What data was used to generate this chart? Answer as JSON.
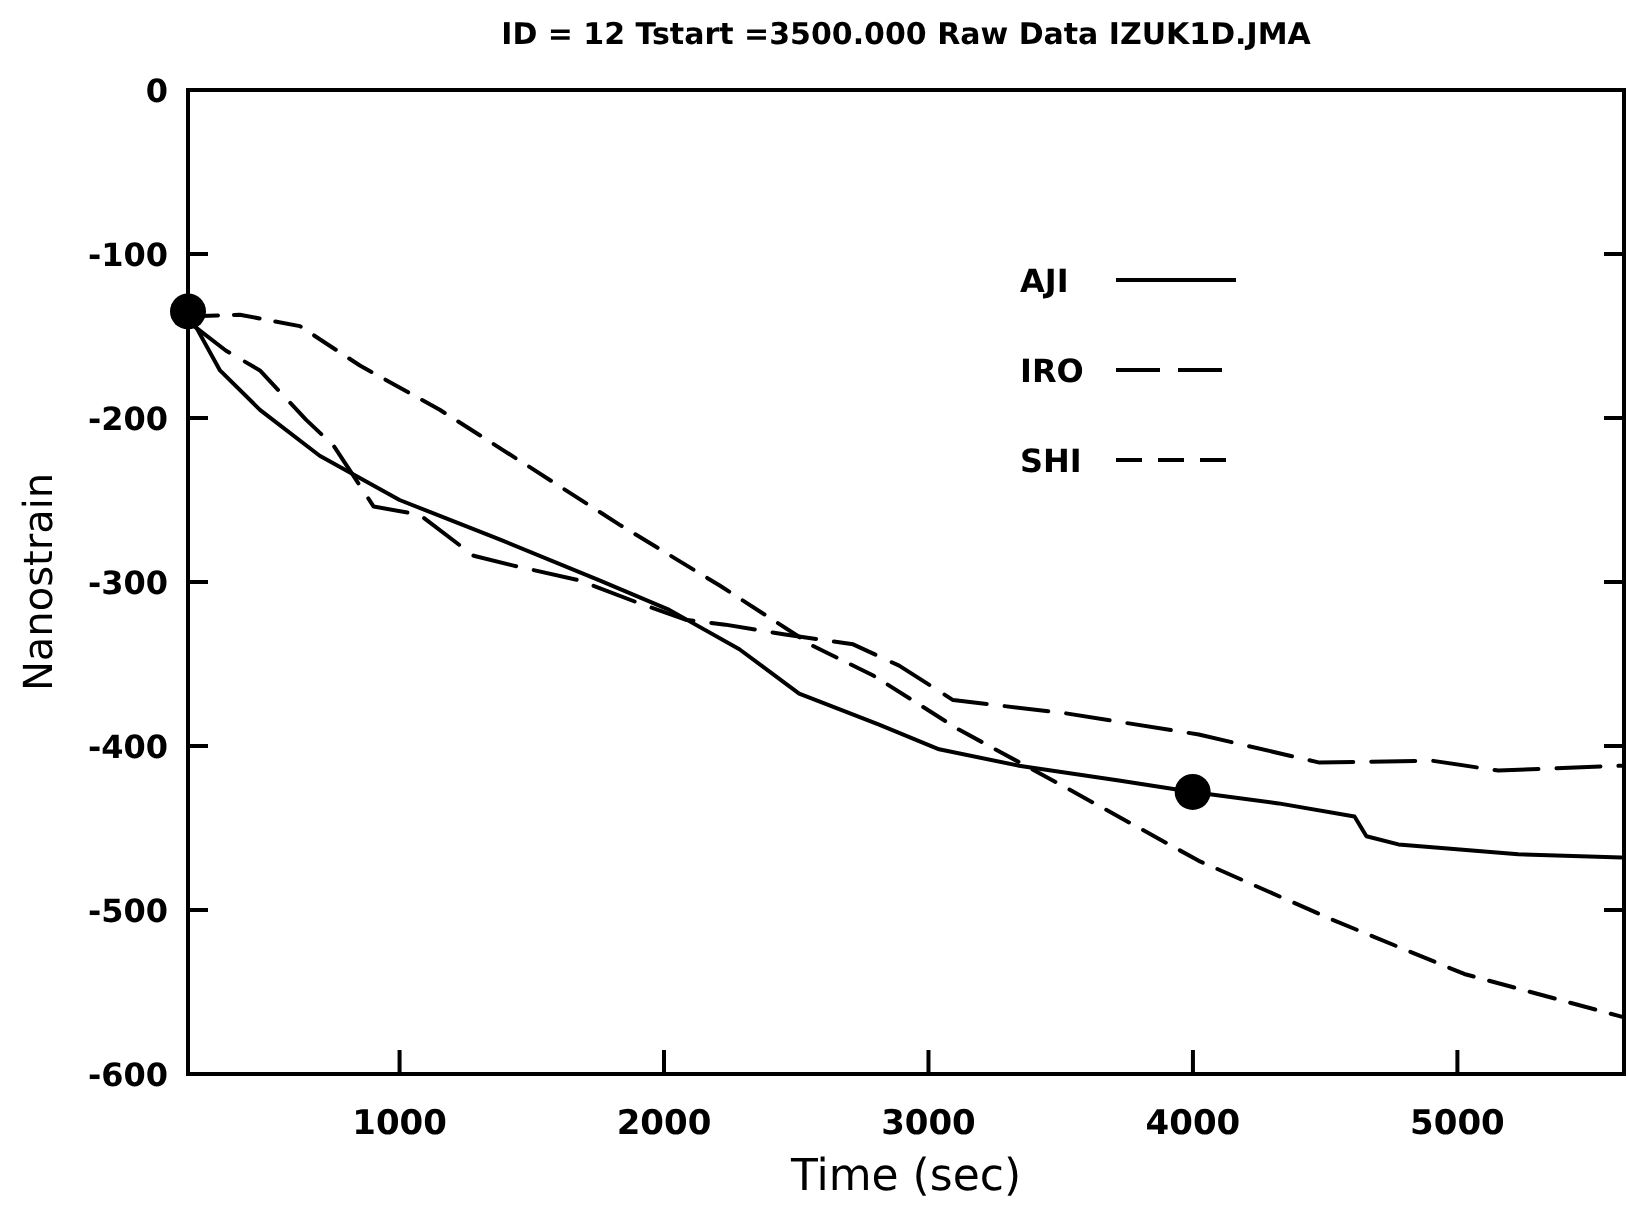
{
  "chart_data": {
    "type": "line",
    "title": "ID = 12 Tstart =3500.000 Raw Data  IZUK1D.JMA",
    "xlabel": "Time (sec)",
    "ylabel": "Nanostrain",
    "xlim": [
      200,
      5630
    ],
    "xticks": [
      1000,
      2000,
      3000,
      4000,
      5000
    ],
    "ylim": [
      -600,
      0
    ],
    "yticks": [
      -600,
      -500,
      -400,
      -300,
      -200,
      -100,
      0
    ],
    "grid": false,
    "legend": "top right",
    "series": [
      {
        "name": "AJI",
        "color": "#000000",
        "line_style": "solid",
        "x": [
          215,
          321,
          472,
          698,
          1000,
          1378,
          1756,
          2020,
          2285,
          2511,
          2813,
          3040,
          3342,
          3720,
          3999,
          4324,
          4611,
          4656,
          4777,
          5230,
          5620
        ],
        "values": [
          -140,
          -171,
          -195,
          -223,
          -250,
          -274,
          -299,
          -317,
          -341,
          -368,
          -387,
          -402,
          -412,
          -421,
          -428,
          -435,
          -443,
          -455,
          -460,
          -466,
          -468
        ]
      },
      {
        "name": "IRO",
        "color": "#000000",
        "line_style": "dashed",
        "x": [
          223,
          344,
          472,
          646,
          751,
          902,
          1076,
          1280,
          1431,
          1680,
          1907,
          2081,
          2232,
          2458,
          2715,
          2889,
          3093,
          3516,
          4022,
          4475,
          4906,
          5155,
          5620
        ],
        "values": [
          -144,
          -159,
          -171,
          -201,
          -217,
          -254,
          -259,
          -284,
          -290,
          -299,
          -313,
          -323,
          -326,
          -332,
          -338,
          -351,
          -372,
          -380,
          -393,
          -410,
          -409,
          -415,
          -412
        ]
      },
      {
        "name": "SHI",
        "color": "#000000",
        "line_style": "dashed",
        "x": [
          215,
          396,
          623,
          850,
          1152,
          1454,
          1831,
          2209,
          2564,
          2791,
          3115,
          3470,
          4022,
          4528,
          5026,
          5620
        ],
        "values": [
          -138,
          -137,
          -144,
          -168,
          -195,
          -226,
          -265,
          -302,
          -339,
          -357,
          -390,
          -421,
          -470,
          -506,
          -539,
          -565
        ]
      },
      {
        "type": "scatter",
        "color": "#000000",
        "marker": "circle",
        "x": [
          200,
          3999
        ],
        "values": [
          -135,
          -428
        ]
      }
    ]
  }
}
